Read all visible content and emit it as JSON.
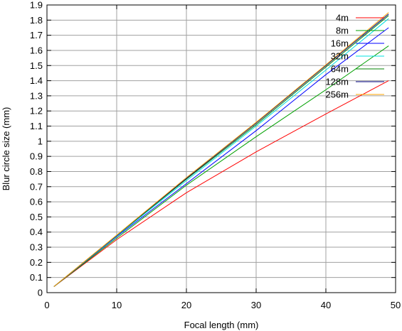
{
  "chart_data": {
    "type": "line",
    "xlabel": "Focal length (mm)",
    "ylabel": "Blur circle size (mm)",
    "xlim": [
      0,
      50
    ],
    "ylim": [
      0,
      1.9
    ],
    "xticks": [
      "0",
      "10",
      "20",
      "30",
      "40",
      "50"
    ],
    "yticks": [
      "0",
      "0.1",
      "0.2",
      "0.3",
      "0.4",
      "0.5",
      "0.6",
      "0.7",
      "0.8",
      "0.9",
      "1",
      "1.1",
      "1.2",
      "1.3",
      "1.4",
      "1.5",
      "1.6",
      "1.7",
      "1.8",
      "1.9"
    ],
    "grid": true,
    "legend_position": "top-right",
    "series": [
      {
        "name": "4m",
        "color": "#ff0000",
        "x": [
          1,
          10,
          20,
          30,
          40,
          49
        ],
        "y": [
          0.04,
          0.35,
          0.66,
          0.93,
          1.18,
          1.4
        ]
      },
      {
        "name": "8m",
        "color": "#00a000",
        "x": [
          1,
          10,
          20,
          30,
          40,
          49
        ],
        "y": [
          0.04,
          0.36,
          0.71,
          1.03,
          1.34,
          1.63
        ]
      },
      {
        "name": "16m",
        "color": "#0000ff",
        "x": [
          1,
          10,
          20,
          30,
          40,
          49
        ],
        "y": [
          0.04,
          0.37,
          0.72,
          1.07,
          1.44,
          1.75
        ]
      },
      {
        "name": "32m",
        "color": "#00e0e0",
        "x": [
          1,
          10,
          20,
          30,
          40,
          49
        ],
        "y": [
          0.04,
          0.375,
          0.74,
          1.1,
          1.47,
          1.81
        ]
      },
      {
        "name": "64m",
        "color": "#008000",
        "x": [
          1,
          10,
          20,
          30,
          40,
          49
        ],
        "y": [
          0.04,
          0.378,
          0.75,
          1.11,
          1.49,
          1.83
        ]
      },
      {
        "name": "128m",
        "color": "#000080",
        "x": [
          1,
          10,
          20,
          30,
          40,
          49
        ],
        "y": [
          0.04,
          0.379,
          0.755,
          1.12,
          1.5,
          1.84
        ]
      },
      {
        "name": "256m",
        "color": "#ffa500",
        "x": [
          1,
          10,
          20,
          30,
          40,
          49
        ],
        "y": [
          0.04,
          0.38,
          0.76,
          1.125,
          1.505,
          1.85
        ]
      }
    ]
  }
}
